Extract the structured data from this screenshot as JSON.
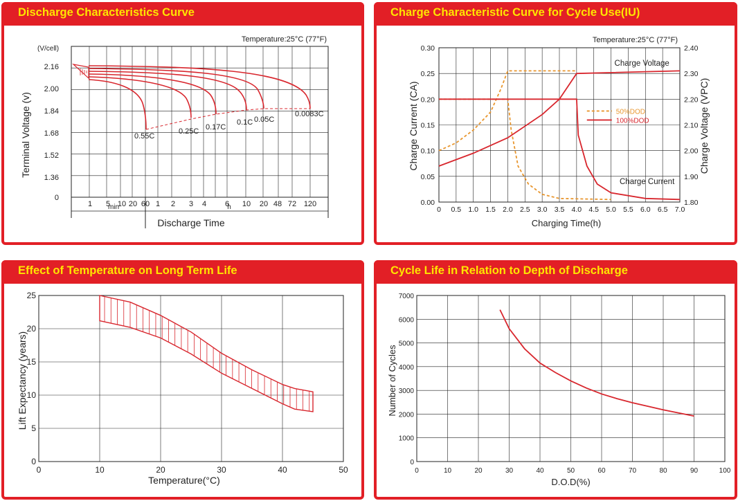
{
  "panels": {
    "discharge": {
      "title": "Discharge Characteristics Curve"
    },
    "charge": {
      "title": "Charge Characteristic Curve for Cycle Use(IU)"
    },
    "temperature": {
      "title": "Effect of Temperature on Long Term Life"
    },
    "cycle": {
      "title": "Cycle Life in Relation to Depth of Discharge"
    }
  },
  "colors": {
    "curve": "#d8262d",
    "orange": "#e8962e",
    "grid": "#222222",
    "header": "#e21f26",
    "title_text": "#ffe500"
  },
  "chart_data": [
    {
      "id": "discharge",
      "type": "line",
      "title": "Discharge Characteristics Curve",
      "annotation": "Temperature:25°C (77°F)",
      "ylabel": "Terminal Voltage (v)",
      "yunit": "(V/cell)",
      "xlabel": "Discharge Time",
      "yticks": [
        "2.16",
        "2.00",
        "1.84",
        "1.68",
        "1.52",
        "1.36",
        "0"
      ],
      "xticks": [
        "1",
        "5",
        "10",
        "20",
        "60",
        "1",
        "2",
        "3",
        "4",
        "6",
        "10",
        "20",
        "48",
        "72",
        "120"
      ],
      "xgroups": [
        "min",
        "h"
      ],
      "series": [
        {
          "name": "0.55C",
          "end_time": "60 min",
          "end_voltage": 1.7
        },
        {
          "name": "0.25C",
          "end_time": "3 h",
          "end_voltage": 1.75
        },
        {
          "name": "0.17C",
          "end_time": "5 h",
          "end_voltage": 1.75
        },
        {
          "name": "0.1C",
          "end_time": "10 h",
          "end_voltage": 1.8
        },
        {
          "name": "0.05C",
          "end_time": "20 h",
          "end_voltage": 1.8
        },
        {
          "name": "0.0083C",
          "end_time": "120 h",
          "end_voltage": 1.85
        }
      ],
      "grid": true
    },
    {
      "id": "charge",
      "type": "line",
      "title": "Charge Characteristic Curve for Cycle Use(IU)",
      "annotation": "Temperature:25°C (77°F)",
      "xlabel": "Charging Time(h)",
      "ylabel": "Charge Current (CA)",
      "y2label": "Charge Voltage (VPC)",
      "xticks": [
        "0",
        "0.5",
        "1.0",
        "1.5",
        "2.0",
        "2.5",
        "3.0",
        "3.5",
        "4.0",
        "4.5",
        "5.0",
        "5.5",
        "6.0",
        "6.5",
        "7.0"
      ],
      "yticks": [
        "0.00",
        "0.05",
        "0.10",
        "0.15",
        "0.20",
        "0.25",
        "0.30"
      ],
      "y2ticks": [
        "1.80",
        "1.90",
        "2.00",
        "2.10",
        "2.20",
        "2.30",
        "2.40"
      ],
      "xlim": [
        0,
        7
      ],
      "ylim": [
        0,
        0.3
      ],
      "y2lim": [
        1.8,
        2.4
      ],
      "curve_labels": [
        "Charge Voltage",
        "Charge Current"
      ],
      "series": [
        {
          "name": "50%DOD",
          "style": "dashed",
          "current": [
            [
              0,
              0.2
            ],
            [
              2.0,
              0.2
            ],
            [
              2.1,
              0.14
            ],
            [
              2.3,
              0.07
            ],
            [
              2.6,
              0.035
            ],
            [
              3.0,
              0.015
            ],
            [
              3.5,
              0.007
            ],
            [
              5.0,
              0.005
            ]
          ],
          "voltage": [
            [
              0,
              2.0
            ],
            [
              0.5,
              2.03
            ],
            [
              1.0,
              2.08
            ],
            [
              1.5,
              2.15
            ],
            [
              1.8,
              2.24
            ],
            [
              2.0,
              2.31
            ],
            [
              4.0,
              2.31
            ]
          ]
        },
        {
          "name": "100%DOD",
          "style": "solid",
          "current": [
            [
              0,
              0.2
            ],
            [
              4.0,
              0.2
            ],
            [
              4.05,
              0.13
            ],
            [
              4.3,
              0.07
            ],
            [
              4.6,
              0.035
            ],
            [
              5.0,
              0.018
            ],
            [
              6.0,
              0.007
            ],
            [
              7.0,
              0.005
            ]
          ],
          "voltage": [
            [
              0,
              1.94
            ],
            [
              1.0,
              1.99
            ],
            [
              2.0,
              2.05
            ],
            [
              3.0,
              2.14
            ],
            [
              3.5,
              2.2
            ],
            [
              4.0,
              2.3
            ],
            [
              7.0,
              2.31
            ]
          ]
        }
      ],
      "grid": true
    },
    {
      "id": "temperature",
      "type": "area",
      "title": "Effect of Temperature on Long Term Life",
      "xlabel": "Temperature(°C)",
      "ylabel": "Lift Expectancy (years)",
      "xticks": [
        "0",
        "10",
        "20",
        "30",
        "40",
        "50"
      ],
      "yticks": [
        "0",
        "5",
        "10",
        "15",
        "20",
        "25"
      ],
      "xlim": [
        0,
        50
      ],
      "ylim": [
        0,
        25
      ],
      "upper": [
        [
          10,
          25
        ],
        [
          15,
          24
        ],
        [
          20,
          22
        ],
        [
          25,
          19.5
        ],
        [
          30,
          16.3
        ],
        [
          35,
          13.8
        ],
        [
          40,
          11.6
        ],
        [
          42,
          11
        ],
        [
          45,
          10.5
        ]
      ],
      "lower": [
        [
          10,
          21.2
        ],
        [
          15,
          20.2
        ],
        [
          20,
          18.6
        ],
        [
          25,
          16.2
        ],
        [
          30,
          13.3
        ],
        [
          35,
          11
        ],
        [
          40,
          8.7
        ],
        [
          42,
          7.9
        ],
        [
          45,
          7.5
        ]
      ],
      "grid": true
    },
    {
      "id": "cycle",
      "type": "line",
      "title": "Cycle Life in Relation to Depth of Discharge",
      "xlabel": "D.O.D(%)",
      "ylabel": "Number of Cycles",
      "xticks": [
        "0",
        "10",
        "20",
        "30",
        "40",
        "50",
        "60",
        "70",
        "80",
        "90",
        "100"
      ],
      "yticks": [
        "0",
        "1000",
        "2000",
        "3000",
        "4000",
        "5000",
        "6000",
        "7000"
      ],
      "xlim": [
        0,
        100
      ],
      "ylim": [
        0,
        7000
      ],
      "x": [
        27,
        30,
        35,
        40,
        45,
        50,
        55,
        60,
        65,
        70,
        75,
        80,
        85,
        90
      ],
      "y": [
        6400,
        5600,
        4750,
        4150,
        3750,
        3400,
        3100,
        2850,
        2650,
        2480,
        2330,
        2180,
        2050,
        1920
      ],
      "grid": true
    }
  ]
}
